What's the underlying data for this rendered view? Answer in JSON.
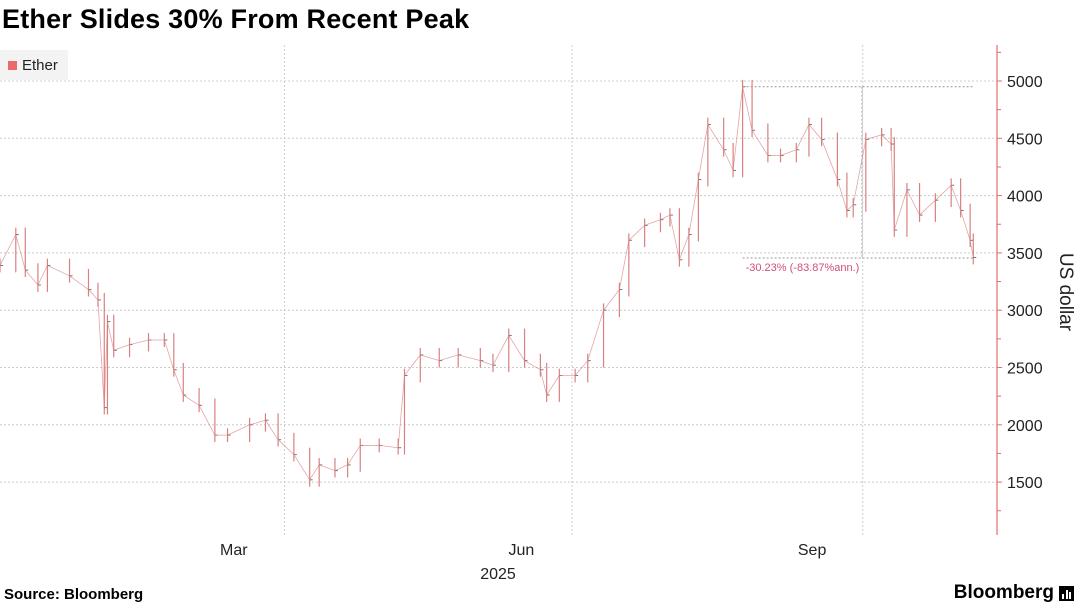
{
  "title": "Ether Slides 30% From Recent Peak",
  "source": "Source: Bloomberg",
  "brand": "Bloomberg",
  "colors": {
    "series": "#e05a5a",
    "bars": "#d98080",
    "axis": "#e07070",
    "annotation": "#d0507a",
    "grid": "#cccccc"
  },
  "chart_data": {
    "type": "bar",
    "title": "Ether Slides 30% From Recent Peak",
    "legend": {
      "entries": [
        "Ether"
      ],
      "placement": "top-left"
    },
    "ylabel": "US dollar",
    "yaxis_side": "right",
    "ylim": [
      1100,
      5300
    ],
    "yticks": [
      1500,
      2000,
      2500,
      3000,
      3500,
      4000,
      4500,
      5000
    ],
    "xlim": [
      "2025-01-01",
      "2025-11-10"
    ],
    "xticks": [
      {
        "label": "Mar",
        "date": "2025-03-16"
      },
      {
        "label": "Jun",
        "date": "2025-06-15"
      },
      {
        "label": "Sep",
        "date": "2025-09-15"
      }
    ],
    "xgrid": [
      "2025-04-01",
      "2025-07-01",
      "2025-10-01"
    ],
    "year_label": "2025",
    "grid": true,
    "series": [
      {
        "name": "Ether",
        "points": [
          [
            "2025-01-01",
            3390
          ],
          [
            "2025-01-06",
            3660
          ],
          [
            "2025-01-09",
            3350
          ],
          [
            "2025-01-13",
            3220
          ],
          [
            "2025-01-16",
            3390
          ],
          [
            "2025-01-23",
            3300
          ],
          [
            "2025-01-29",
            3180
          ],
          [
            "2025-02-01",
            3090
          ],
          [
            "2025-02-03",
            2150
          ],
          [
            "2025-02-04",
            2900
          ],
          [
            "2025-02-06",
            2650
          ],
          [
            "2025-02-11",
            2700
          ],
          [
            "2025-02-17",
            2740
          ],
          [
            "2025-02-22",
            2740
          ],
          [
            "2025-02-25",
            2480
          ],
          [
            "2025-02-28",
            2260
          ],
          [
            "2025-03-05",
            2170
          ],
          [
            "2025-03-10",
            1910
          ],
          [
            "2025-03-14",
            1910
          ],
          [
            "2025-03-21",
            2000
          ],
          [
            "2025-03-26",
            2040
          ],
          [
            "2025-03-30",
            1870
          ],
          [
            "2025-04-04",
            1740
          ],
          [
            "2025-04-09",
            1520
          ],
          [
            "2025-04-12",
            1650
          ],
          [
            "2025-04-17",
            1600
          ],
          [
            "2025-04-21",
            1650
          ],
          [
            "2025-04-25",
            1820
          ],
          [
            "2025-05-01",
            1820
          ],
          [
            "2025-05-07",
            1800
          ],
          [
            "2025-05-09",
            2430
          ],
          [
            "2025-05-14",
            2610
          ],
          [
            "2025-05-20",
            2560
          ],
          [
            "2025-05-26",
            2610
          ],
          [
            "2025-06-02",
            2560
          ],
          [
            "2025-06-06",
            2520
          ],
          [
            "2025-06-11",
            2780
          ],
          [
            "2025-06-16",
            2560
          ],
          [
            "2025-06-21",
            2480
          ],
          [
            "2025-06-23",
            2260
          ],
          [
            "2025-06-27",
            2430
          ],
          [
            "2025-07-02",
            2430
          ],
          [
            "2025-07-06",
            2560
          ],
          [
            "2025-07-11",
            3000
          ],
          [
            "2025-07-16",
            3180
          ],
          [
            "2025-07-19",
            3610
          ],
          [
            "2025-07-24",
            3740
          ],
          [
            "2025-07-29",
            3790
          ],
          [
            "2025-08-01",
            3830
          ],
          [
            "2025-08-04",
            3440
          ],
          [
            "2025-08-07",
            3660
          ],
          [
            "2025-08-10",
            4140
          ],
          [
            "2025-08-13",
            4620
          ],
          [
            "2025-08-18",
            4400
          ],
          [
            "2025-08-21",
            4220
          ],
          [
            "2025-08-24",
            4950
          ],
          [
            "2025-08-27",
            4570
          ],
          [
            "2025-09-01",
            4350
          ],
          [
            "2025-09-05",
            4350
          ],
          [
            "2025-09-10",
            4400
          ],
          [
            "2025-09-14",
            4620
          ],
          [
            "2025-09-18",
            4490
          ],
          [
            "2025-09-23",
            4140
          ],
          [
            "2025-09-26",
            3870
          ],
          [
            "2025-09-28",
            3920
          ],
          [
            "2025-10-02",
            4490
          ],
          [
            "2025-10-07",
            4530
          ],
          [
            "2025-10-10",
            4450
          ],
          [
            "2025-10-11",
            3700
          ],
          [
            "2025-10-15",
            4050
          ],
          [
            "2025-10-19",
            3830
          ],
          [
            "2025-10-24",
            3960
          ],
          [
            "2025-10-29",
            4090
          ],
          [
            "2025-11-01",
            3870
          ],
          [
            "2025-11-04",
            3610
          ],
          [
            "2025-11-05",
            3460
          ]
        ]
      }
    ],
    "annotation": {
      "text": "-30.23% (-83.87%ann.)",
      "from": {
        "date": "2025-08-24",
        "value": 4950
      },
      "to": {
        "date": "2025-11-05",
        "value": 3455
      }
    }
  }
}
